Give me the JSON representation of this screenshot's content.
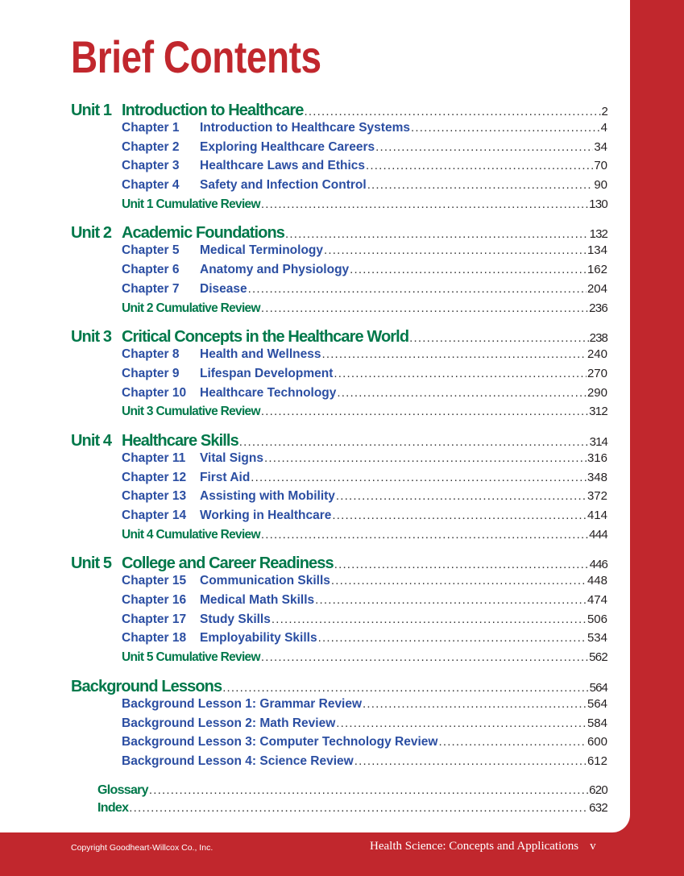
{
  "title": "Brief Contents",
  "units": [
    {
      "label": "Unit 1",
      "title": "Introduction to Healthcare",
      "page": "2",
      "chapters": [
        {
          "label": "Chapter 1",
          "title": "Introduction to Healthcare Systems",
          "page": "4"
        },
        {
          "label": "Chapter 2",
          "title": "Exploring Healthcare Careers",
          "page": "34"
        },
        {
          "label": "Chapter 3",
          "title": "Healthcare Laws and Ethics",
          "page": "70"
        },
        {
          "label": "Chapter 4",
          "title": "Safety and Infection Control",
          "page": "90"
        }
      ],
      "review": {
        "title": "Unit 1  Cumulative Review",
        "page": "130"
      }
    },
    {
      "label": "Unit 2",
      "title": "Academic Foundations",
      "page": "132",
      "chapters": [
        {
          "label": "Chapter 5",
          "title": "Medical Terminology",
          "page": "134"
        },
        {
          "label": "Chapter 6",
          "title": "Anatomy and Physiology",
          "page": "162"
        },
        {
          "label": "Chapter 7",
          "title": "Disease",
          "page": "204"
        }
      ],
      "review": {
        "title": "Unit 2  Cumulative Review",
        "page": "236"
      }
    },
    {
      "label": "Unit 3",
      "title": "Critical Concepts in the Healthcare World",
      "page": "238",
      "chapters": [
        {
          "label": "Chapter 8",
          "title": "Health and Wellness",
          "page": "240"
        },
        {
          "label": "Chapter 9",
          "title": "Lifespan Development",
          "page": "270"
        },
        {
          "label": "Chapter 10",
          "title": "Healthcare Technology",
          "page": "290"
        }
      ],
      "review": {
        "title": "Unit 3  Cumulative Review",
        "page": "312"
      }
    },
    {
      "label": "Unit 4",
      "title": "Healthcare Skills",
      "page": "314",
      "chapters": [
        {
          "label": "Chapter 11",
          "title": "Vital Signs",
          "page": "316"
        },
        {
          "label": "Chapter 12",
          "title": "First Aid",
          "page": "348"
        },
        {
          "label": "Chapter 13",
          "title": "Assisting with Mobility",
          "page": "372"
        },
        {
          "label": "Chapter 14",
          "title": "Working in Healthcare",
          "page": "414"
        }
      ],
      "review": {
        "title": "Unit 4  Cumulative Review",
        "page": "444"
      }
    },
    {
      "label": "Unit 5",
      "title": "College and Career Readiness",
      "page": "446",
      "chapters": [
        {
          "label": "Chapter 15",
          "title": "Communication Skills",
          "page": "448"
        },
        {
          "label": "Chapter 16",
          "title": "Medical Math Skills",
          "page": "474"
        },
        {
          "label": "Chapter 17",
          "title": "Study Skills",
          "page": "506"
        },
        {
          "label": "Chapter 18",
          "title": "Employability Skills",
          "page": "534"
        }
      ],
      "review": {
        "title": "Unit 5  Cumulative Review",
        "page": "562"
      }
    }
  ],
  "background": {
    "title": "Background Lessons",
    "page": "564",
    "lessons": [
      {
        "title": "Background Lesson 1: Grammar Review",
        "page": "564"
      },
      {
        "title": "Background Lesson 2: Math Review",
        "page": "584"
      },
      {
        "title": "Background Lesson 3: Computer Technology Review",
        "page": "600"
      },
      {
        "title": "Background Lesson 4: Science Review",
        "page": "612"
      }
    ]
  },
  "backmatter": [
    {
      "title": "Glossary",
      "page": "620"
    },
    {
      "title": "Index",
      "page": "632"
    }
  ],
  "footer": {
    "copyright": "Copyright Goodheart-Willcox Co., Inc.",
    "book_title": "Health Science: Concepts and Applications",
    "page_number": "v"
  },
  "colors": {
    "brand_red": "#c1272d",
    "unit_green": "#00784a",
    "chapter_blue": "#2b4ea2"
  }
}
